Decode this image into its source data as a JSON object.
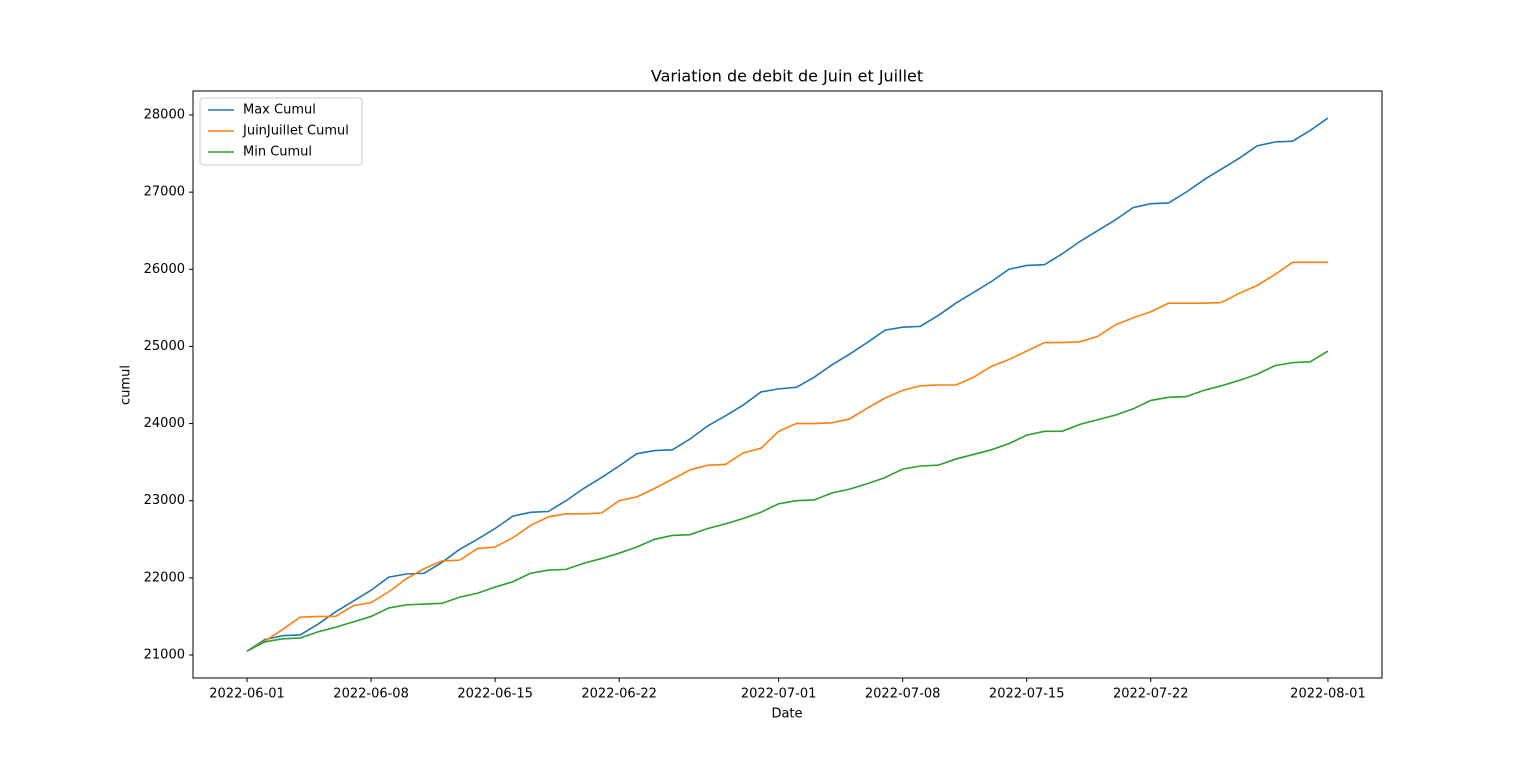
{
  "chart_data": {
    "type": "line",
    "title": "Variation de debit de Juin et Juillet",
    "x_label": "Date",
    "y_label": "cumul",
    "x": [
      "2022-06-01",
      "2022-06-02",
      "2022-06-03",
      "2022-06-04",
      "2022-06-05",
      "2022-06-06",
      "2022-06-07",
      "2022-06-08",
      "2022-06-09",
      "2022-06-10",
      "2022-06-11",
      "2022-06-12",
      "2022-06-13",
      "2022-06-14",
      "2022-06-15",
      "2022-06-16",
      "2022-06-17",
      "2022-06-18",
      "2022-06-19",
      "2022-06-20",
      "2022-06-21",
      "2022-06-22",
      "2022-06-23",
      "2022-06-24",
      "2022-06-25",
      "2022-06-26",
      "2022-06-27",
      "2022-06-28",
      "2022-06-29",
      "2022-06-30",
      "2022-07-01",
      "2022-07-02",
      "2022-07-03",
      "2022-07-04",
      "2022-07-05",
      "2022-07-06",
      "2022-07-07",
      "2022-07-08",
      "2022-07-09",
      "2022-07-10",
      "2022-07-11",
      "2022-07-12",
      "2022-07-13",
      "2022-07-14",
      "2022-07-15",
      "2022-07-16",
      "2022-07-17",
      "2022-07-18",
      "2022-07-19",
      "2022-07-20",
      "2022-07-21",
      "2022-07-22",
      "2022-07-23",
      "2022-07-24",
      "2022-07-25",
      "2022-07-26",
      "2022-07-27",
      "2022-07-28",
      "2022-07-29",
      "2022-07-30",
      "2022-07-31",
      "2022-08-01"
    ],
    "series": [
      {
        "name": "Max Cumul",
        "color": "#1f77b4",
        "values": [
          21050,
          21200,
          21250,
          21260,
          21400,
          21560,
          21700,
          21840,
          22010,
          22050,
          22060,
          22200,
          22370,
          22500,
          22640,
          22800,
          22850,
          22860,
          23000,
          23160,
          23300,
          23450,
          23610,
          23650,
          23660,
          23800,
          23970,
          24100,
          24240,
          24410,
          24450,
          24470,
          24600,
          24760,
          24900,
          25050,
          25210,
          25250,
          25260,
          25400,
          25560,
          25700,
          25840,
          26000,
          26050,
          26060,
          26200,
          26360,
          26500,
          26640,
          26800,
          26850,
          26860,
          27000,
          27160,
          27300,
          27440,
          27600,
          27650,
          27660,
          27800,
          27960
        ]
      },
      {
        "name": "JuinJuillet Cumul",
        "color": "#ff7f0e",
        "values": [
          21050,
          21180,
          21330,
          21490,
          21500,
          21500,
          21640,
          21680,
          21820,
          21990,
          22120,
          22220,
          22230,
          22380,
          22400,
          22520,
          22680,
          22790,
          22830,
          22830,
          22840,
          23000,
          23050,
          23160,
          23280,
          23400,
          23460,
          23470,
          23620,
          23680,
          23900,
          24000,
          24000,
          24010,
          24060,
          24200,
          24330,
          24430,
          24490,
          24500,
          24500,
          24600,
          24740,
          24830,
          24940,
          25050,
          25050,
          25060,
          25130,
          25280,
          25370,
          25450,
          25560,
          25560,
          25560,
          25570,
          25690,
          25790,
          25930,
          26090,
          26090,
          26090
        ]
      },
      {
        "name": "Min Cumul",
        "color": "#2ca02c",
        "values": [
          21050,
          21170,
          21210,
          21220,
          21300,
          21360,
          21430,
          21500,
          21610,
          21650,
          21660,
          21670,
          21750,
          21800,
          21880,
          21950,
          22060,
          22100,
          22110,
          22190,
          22250,
          22320,
          22400,
          22500,
          22550,
          22560,
          22640,
          22700,
          22770,
          22850,
          22960,
          23000,
          23010,
          23100,
          23150,
          23220,
          23300,
          23410,
          23450,
          23460,
          23540,
          23600,
          23660,
          23740,
          23850,
          23900,
          23900,
          23990,
          24050,
          24110,
          24190,
          24300,
          24340,
          24350,
          24430,
          24490,
          24560,
          24640,
          24750,
          24790,
          24800,
          24940
        ]
      }
    ],
    "xlim": [
      "2022-05-28T22:48:00Z",
      "2022-08-04T01:12:00Z"
    ],
    "xticks": [
      "2022-06-01",
      "2022-06-08",
      "2022-06-15",
      "2022-06-22",
      "2022-07-01",
      "2022-07-08",
      "2022-07-15",
      "2022-07-22",
      "2022-08-01"
    ],
    "ylim": [
      20702,
      28311
    ],
    "yticks": [
      21000,
      22000,
      23000,
      24000,
      25000,
      26000,
      27000,
      28000
    ],
    "legend": "upper left",
    "grid": false
  }
}
